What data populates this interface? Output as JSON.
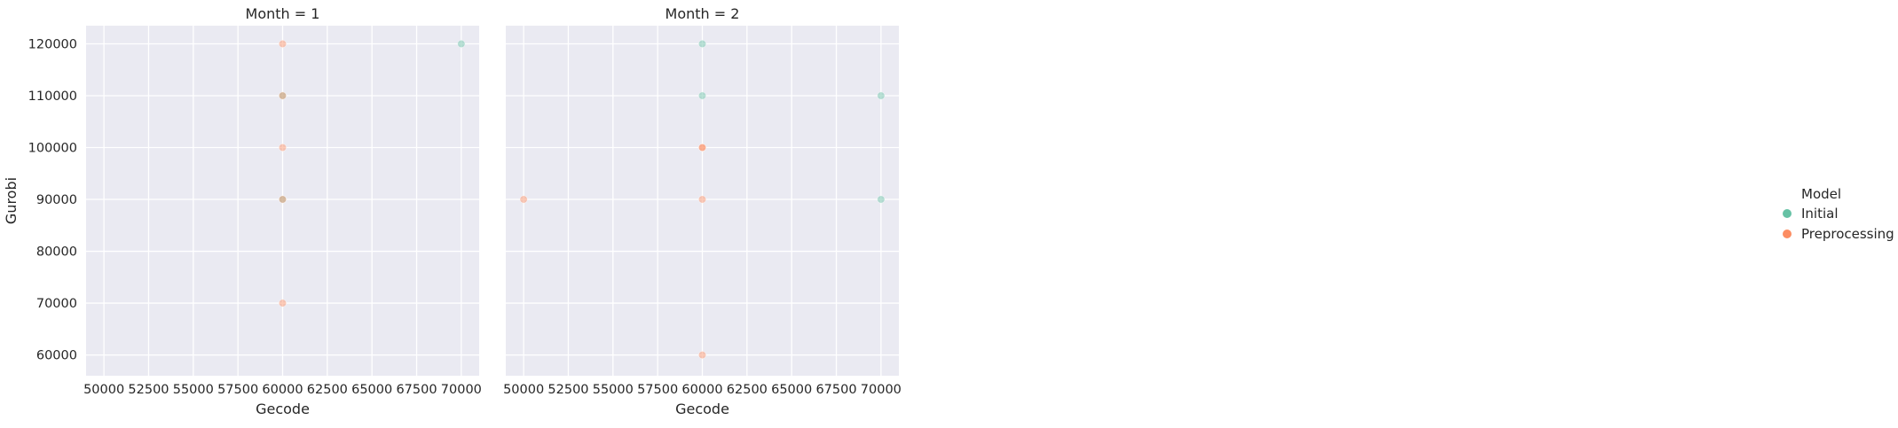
{
  "chart_data": [
    {
      "type": "scatter",
      "title": "Month = 1",
      "xlabel": "Gecode",
      "ylabel": "Gurobi",
      "xlim": [
        49000,
        71000
      ],
      "ylim": [
        56000,
        123500
      ],
      "xticks": [
        50000,
        52500,
        55000,
        57500,
        60000,
        62500,
        65000,
        67500,
        70000
      ],
      "yticks": [
        60000,
        70000,
        80000,
        90000,
        100000,
        110000,
        120000
      ],
      "grid": true,
      "series": [
        {
          "name": "Initial",
          "color": "#66c2a5",
          "x": [
            70000,
            60000,
            60000
          ],
          "y": [
            120000,
            110000,
            90000
          ]
        },
        {
          "name": "Preprocessing",
          "color": "#fc8d62",
          "x": [
            60000,
            60000,
            60000,
            60000,
            60000
          ],
          "y": [
            120000,
            110000,
            100000,
            90000,
            70000
          ]
        }
      ]
    },
    {
      "type": "scatter",
      "title": "Month = 2",
      "xlabel": "Gecode",
      "ylabel": "",
      "xlim": [
        49000,
        71000
      ],
      "ylim": [
        56000,
        123500
      ],
      "xticks": [
        50000,
        52500,
        55000,
        57500,
        60000,
        62500,
        65000,
        67500,
        70000
      ],
      "yticks": [
        60000,
        70000,
        80000,
        90000,
        100000,
        110000,
        120000
      ],
      "grid": true,
      "series": [
        {
          "name": "Initial",
          "color": "#66c2a5",
          "x": [
            60000,
            60000,
            70000,
            70000
          ],
          "y": [
            120000,
            110000,
            110000,
            90000
          ]
        },
        {
          "name": "Preprocessing",
          "color": "#fc8d62",
          "x": [
            60000,
            60000,
            50000,
            60000,
            60000
          ],
          "y": [
            100000,
            100000,
            90000,
            90000,
            60000
          ]
        }
      ]
    }
  ],
  "legend": {
    "title": "Model",
    "placement": "right",
    "entries": [
      {
        "label": "Initial",
        "color": "#66c2a5"
      },
      {
        "label": "Preprocessing",
        "color": "#fc8d62"
      }
    ]
  }
}
